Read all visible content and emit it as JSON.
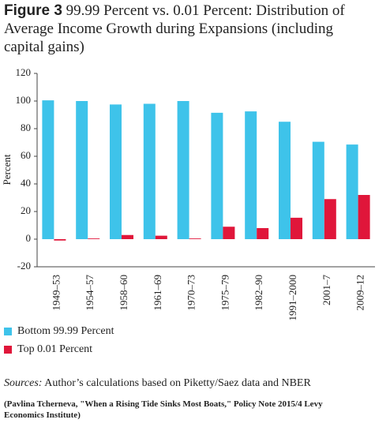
{
  "chart_data": {
    "type": "bar",
    "title_label": "Figure 3",
    "title": "99.99 Percent vs. 0.01 Percent: Distribution of Average Income Growth during Expansions (including capital gains)",
    "y_label": "Percent",
    "categories": [
      "1949–53",
      "1954–57",
      "1958–60",
      "1961–69",
      "1970–73",
      "1975–79",
      "1982–90",
      "1991–2000",
      "2001–7",
      "2009–12"
    ],
    "series": [
      {
        "name": "Bottom 99.99 Percent",
        "color": "#3ec3ea",
        "values": [
          100.5,
          100,
          97.5,
          98,
          100,
          91.5,
          92.5,
          85,
          70.5,
          68.5
        ]
      },
      {
        "name": "Top 0.01 Percent",
        "color": "#e0163a",
        "values": [
          -1,
          0.5,
          3,
          2.5,
          0.5,
          9,
          8,
          15.5,
          29,
          32
        ]
      }
    ],
    "ylim": [
      -20,
      120
    ],
    "yticks": [
      -20,
      0,
      20,
      40,
      60,
      80,
      100,
      120
    ],
    "sources_label": "Sources:",
    "sources": "Author’s calculations based on Piketty/Saez data and NBER",
    "note": "(Pavlina Tcherneva, \"When a Rising Tide Sinks Most Boats,\" Policy Note 2015/4 Levy Economics Institute)"
  }
}
